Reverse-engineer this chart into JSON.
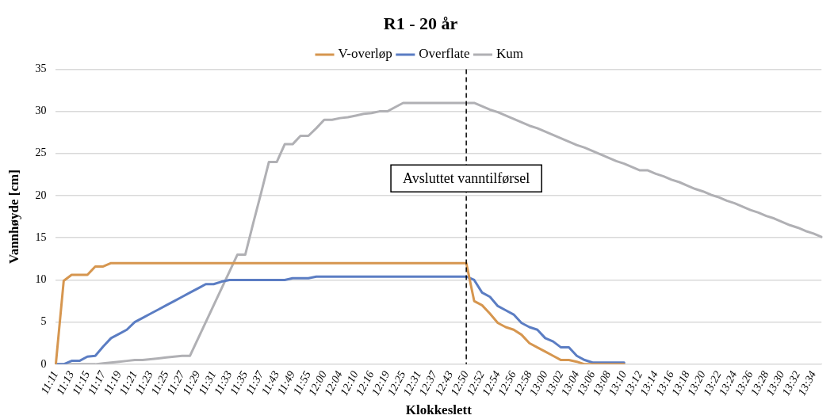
{
  "chart_data": {
    "type": "line",
    "title": "R1 - 20 år",
    "xlabel": "Klokkeslett",
    "ylabel": "Vannhøyde [cm]",
    "categories": [
      "11:11",
      null,
      "11:13",
      null,
      "11:15",
      null,
      "11:17",
      null,
      "11:19",
      null,
      "11:21",
      null,
      "11:23",
      null,
      "11:25",
      null,
      "11:27",
      null,
      "11:29",
      null,
      "11:31",
      null,
      "11:33",
      null,
      "11:35",
      null,
      "11:37",
      null,
      "11:43",
      null,
      "11:49",
      null,
      "11:55",
      null,
      "12:00",
      null,
      "12:04",
      null,
      "12:10",
      null,
      "12:16",
      null,
      "12:19",
      null,
      "12:25",
      null,
      "12:31",
      null,
      "12:37",
      null,
      "12:43",
      null,
      "12:50",
      null,
      "12:52",
      null,
      "12:54",
      null,
      "12:56",
      null,
      "12:58",
      null,
      "13:00",
      null,
      "13:02",
      null,
      "13:04",
      null,
      "13:06",
      null,
      "13:08",
      null,
      "13:10",
      null,
      "13:12",
      null,
      "13:14",
      null,
      "13:16",
      null,
      "13:18",
      null,
      "13:20",
      null,
      "13:22",
      null,
      "13:24",
      null,
      "13:26",
      null,
      "13:28",
      null,
      "13:30",
      null,
      "13:32",
      null,
      "13:34",
      null
    ],
    "series": [
      {
        "name": "V-overløp",
        "color": "#d6964f",
        "values": [
          0,
          9.9,
          10.6,
          10.6,
          10.6,
          11.6,
          11.6,
          12,
          12,
          12,
          12,
          12,
          12,
          12,
          12,
          12,
          12,
          12,
          12,
          12,
          12,
          12,
          12,
          12,
          12,
          12,
          12,
          12,
          12,
          12,
          12,
          12,
          12,
          12,
          12,
          12,
          12,
          12,
          12,
          12,
          12,
          12,
          12,
          12,
          12,
          12,
          12,
          12,
          12,
          12,
          12,
          12,
          12,
          7.5,
          7,
          6,
          4.9,
          4.4,
          4.1,
          3.5,
          2.5,
          2,
          1.5,
          1,
          0.5,
          0.5,
          0.3,
          0,
          0,
          0,
          0,
          0,
          0,
          null,
          null,
          null,
          null,
          null,
          null,
          null,
          null,
          null,
          null,
          null,
          null,
          null,
          null,
          null,
          null,
          null,
          null,
          null,
          null,
          null,
          null,
          null,
          null,
          null
        ]
      },
      {
        "name": "Overflate",
        "color": "#5b7dc3",
        "values": [
          0,
          0,
          0.4,
          0.4,
          0.9,
          1,
          2.1,
          3.1,
          3.6,
          4.1,
          5,
          5.5,
          6,
          6.5,
          7,
          7.5,
          8,
          8.5,
          9,
          9.5,
          9.5,
          9.8,
          10,
          10,
          10,
          10,
          10,
          10,
          10,
          10,
          10.2,
          10.2,
          10.2,
          10.4,
          10.4,
          10.4,
          10.4,
          10.4,
          10.4,
          10.4,
          10.4,
          10.4,
          10.4,
          10.4,
          10.4,
          10.4,
          10.4,
          10.4,
          10.4,
          10.4,
          10.4,
          10.4,
          10.4,
          10,
          8.5,
          8,
          6.9,
          6.4,
          5.9,
          4.9,
          4.4,
          4.1,
          3.1,
          2.7,
          2,
          2,
          1,
          0.5,
          0.2,
          0.2,
          0.2,
          0.2,
          0.2,
          null,
          null,
          null,
          null,
          null,
          null,
          null,
          null,
          null,
          null,
          null,
          null,
          null,
          null,
          null,
          null,
          null,
          null,
          null,
          null,
          null,
          null,
          null,
          null,
          null
        ]
      },
      {
        "name": "Kum",
        "color": "#b0b0b4",
        "values": [
          0,
          0,
          0,
          0,
          0,
          0,
          0.1,
          0.2,
          0.3,
          0.4,
          0.5,
          0.5,
          0.6,
          0.7,
          0.8,
          0.9,
          1,
          1,
          3,
          5,
          7,
          9,
          11,
          13,
          13,
          16.7,
          20.3,
          24,
          24,
          26.1,
          26.1,
          27.1,
          27.1,
          28,
          29,
          29,
          29.2,
          29.3,
          29.5,
          29.7,
          29.8,
          30,
          30,
          30.5,
          31,
          31,
          31,
          31,
          31,
          31,
          31,
          31,
          31,
          31,
          30.6,
          30.2,
          29.9,
          29.5,
          29.1,
          28.7,
          28.3,
          28,
          27.6,
          27.2,
          26.8,
          26.4,
          26,
          25.7,
          25.3,
          24.9,
          24.5,
          24.1,
          23.8,
          23.4,
          23,
          23,
          22.6,
          22.3,
          21.9,
          21.6,
          21.2,
          20.8,
          20.5,
          20.1,
          19.8,
          19.4,
          19.1,
          18.7,
          18.3,
          18,
          17.6,
          17.3,
          16.9,
          16.5,
          16.2,
          15.8,
          15.5,
          15.1
        ]
      }
    ],
    "ylim": [
      0,
      35
    ],
    "yticks": [
      0,
      5,
      10,
      15,
      20,
      25,
      30,
      35
    ],
    "grid": "y",
    "legend": "top",
    "marker": "none",
    "line_style": "solid",
    "ref_lines": [
      {
        "axis": "x",
        "value": "12:50",
        "label": "Avsluttet vanntilførsel",
        "color": "#000000",
        "line_style": "dashed"
      }
    ]
  }
}
